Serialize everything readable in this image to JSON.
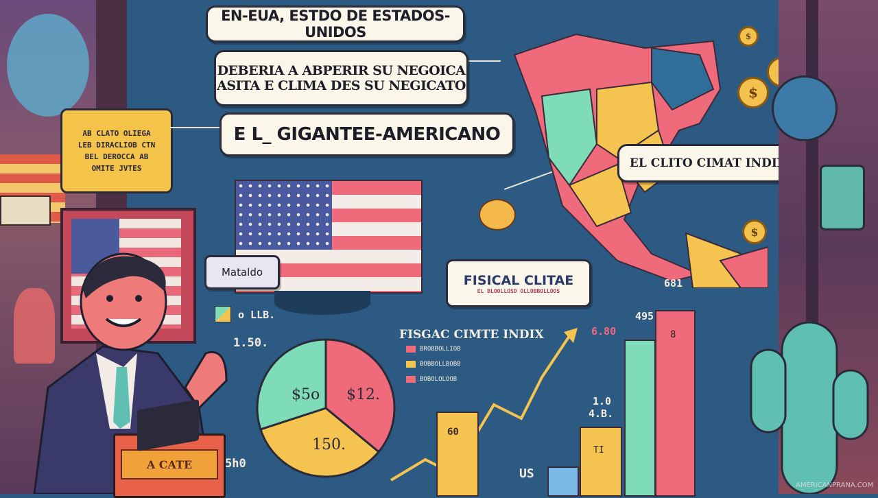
{
  "bubbles": {
    "top": "EN-EUA, ESTDO DE ESTADOS-UNIDOS",
    "second_line1": "DEBERIA A ABPERIR SU NEGOICA",
    "second_line2": "ASITA E CLIMA DES SU NEGICATO",
    "main": "E L_ GIGANTEE-AMERICANO",
    "right": "EL CLITO CIMAT INDIX",
    "fiscal_title": "FISICAL CLITAE",
    "fiscal_sub": "EL BLOOLLOSD OLLOBBOLLOOS",
    "left_sign_lines": [
      "AB CLATO OLIEGA",
      "LEB DIRACLIOB CTN",
      "BEL DEROCCA AB",
      "OMITE JVTES"
    ],
    "mataldo": "Mataldo"
  },
  "chart": {
    "legend_title": "FISGAC CIMTE INDIX",
    "legend_items": [
      "BROBBOLLIOB",
      "BOBBOLLBOBB",
      "BOBOLOLOOB"
    ],
    "legend_colors": [
      "#ef6a7a",
      "#f5c34f",
      "#ef6a7a"
    ],
    "pie_labels": [
      "$5o",
      "$12.",
      "150."
    ],
    "pie_colors": [
      "#7fdcb8",
      "#ef6a7a",
      "#f5c34f"
    ],
    "side_labels": [
      "o LLB.",
      "1.50.",
      "5h0"
    ],
    "bar_labels": [
      "60",
      "4.B.",
      "TI",
      "1.0",
      "US",
      "6.80",
      "495",
      "681",
      "8"
    ],
    "bar_colors": [
      "#f5c34f",
      "#f5c34f",
      "#7fdcb8",
      "#ef6a7a",
      "#7ab8e6"
    ]
  },
  "podium": "A CATE",
  "watermark": "AMERICANPRANA.COM",
  "coin_symbol": "$"
}
